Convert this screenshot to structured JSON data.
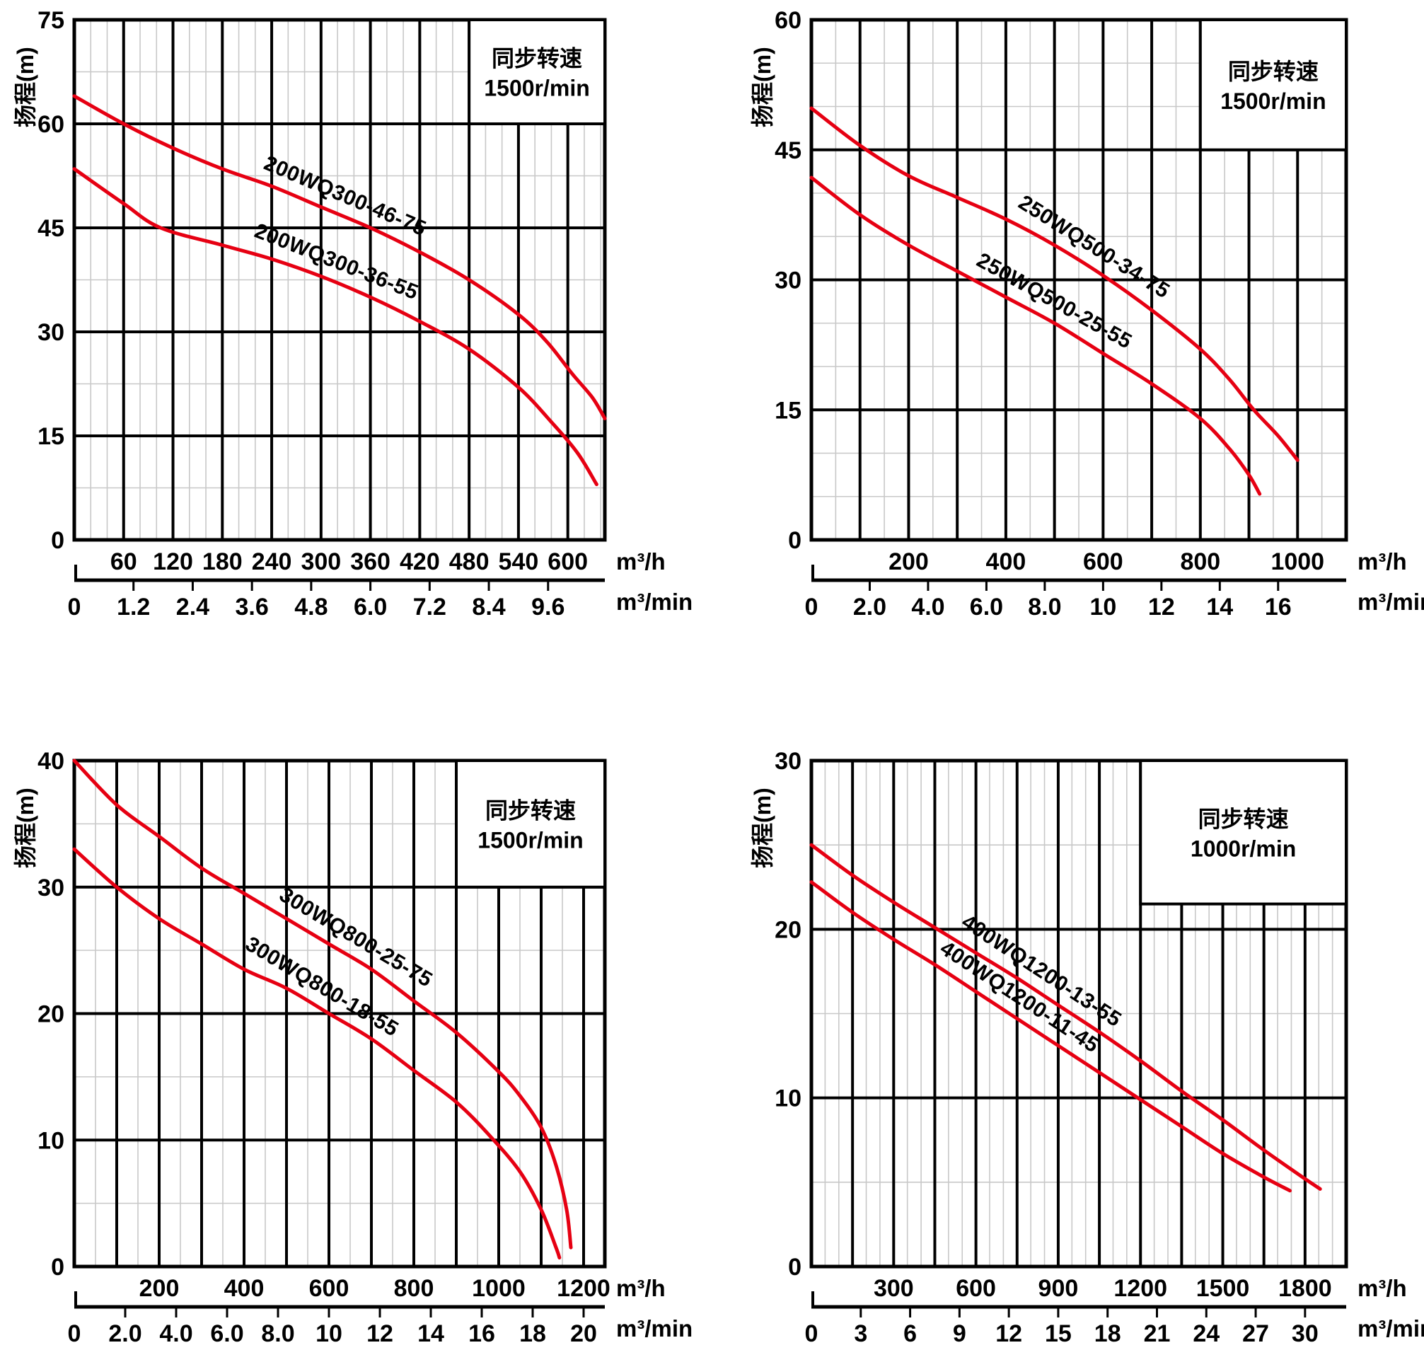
{
  "colors": {
    "curve_red": "#e60012",
    "note_blue": "#1577be",
    "grid_minor": "#c8c8c8",
    "grid_major": "#000000",
    "text": "#000000",
    "background": "#ffffff"
  },
  "chart_data": [
    {
      "type": "line",
      "name": "200WQ300",
      "y_axis_label": "扬程(m)",
      "note": {
        "line1": "同步转速",
        "line2": "1500r/min"
      },
      "units": {
        "primary": "m³/h",
        "secondary": "m³/min"
      },
      "y": {
        "min": 0,
        "max": 75,
        "major": 15,
        "minor": 7.5,
        "tick_labels": [
          "0",
          "15",
          "30",
          "45",
          "60",
          "75"
        ]
      },
      "x": {
        "min": 0,
        "max": 645,
        "major": 60,
        "minor": 20,
        "primary_ticks": {
          "labels": [
            "60",
            "120",
            "180",
            "240",
            "300",
            "360",
            "420",
            "480",
            "540",
            "600"
          ],
          "values": [
            60,
            120,
            180,
            240,
            300,
            360,
            420,
            480,
            540,
            600
          ]
        },
        "secondary_ticks": {
          "labels": [
            "0",
            "1.2",
            "2.4",
            "3.6",
            "4.8",
            "6.0",
            "7.2",
            "8.4",
            "9.6"
          ],
          "values_h": [
            0,
            72,
            144,
            216,
            288,
            360,
            432,
            504,
            576
          ]
        }
      },
      "note_box": {
        "x_from": 480,
        "y_from": 60
      },
      "series": [
        {
          "name": "200WQ300-46-75",
          "points": [
            [
              0,
              64
            ],
            [
              60,
              60
            ],
            [
              120,
              56.5
            ],
            [
              180,
              53.5
            ],
            [
              240,
              51
            ],
            [
              300,
              48
            ],
            [
              360,
              45
            ],
            [
              420,
              41.5
            ],
            [
              480,
              37.5
            ],
            [
              540,
              32.5
            ],
            [
              575,
              28.5
            ],
            [
              605,
              24
            ],
            [
              630,
              20.5
            ],
            [
              645,
              17.5
            ]
          ]
        },
        {
          "name": "200WQ300-36-55",
          "points": [
            [
              0,
              53.5
            ],
            [
              60,
              48.5
            ],
            [
              105,
              45
            ],
            [
              180,
              42.5
            ],
            [
              240,
              40.5
            ],
            [
              300,
              38
            ],
            [
              360,
              35
            ],
            [
              420,
              31.5
            ],
            [
              480,
              27.5
            ],
            [
              540,
              22
            ],
            [
              580,
              17
            ],
            [
              612,
              12.5
            ],
            [
              635,
              8
            ]
          ]
        }
      ]
    },
    {
      "type": "line",
      "name": "250WQ500",
      "y_axis_label": "扬程(m)",
      "note": {
        "line1": "同步转速",
        "line2": "1500r/min"
      },
      "units": {
        "primary": "m³/h",
        "secondary": "m³/min"
      },
      "y": {
        "min": 0,
        "max": 60,
        "major": 15,
        "minor": 5,
        "tick_labels": [
          "0",
          "15",
          "30",
          "45",
          "60"
        ]
      },
      "x": {
        "min": 0,
        "max": 1100,
        "major": 100,
        "minor": 50,
        "primary_ticks": {
          "labels": [
            "200",
            "400",
            "600",
            "800",
            "1000"
          ],
          "values": [
            200,
            400,
            600,
            800,
            1000
          ]
        },
        "secondary_ticks": {
          "labels": [
            "0",
            "2.0",
            "4.0",
            "6.0",
            "8.0",
            "10",
            "12",
            "14",
            "16"
          ],
          "values_h": [
            0,
            120,
            240,
            360,
            480,
            600,
            720,
            840,
            960
          ]
        }
      },
      "note_box": {
        "x_from": 800,
        "y_from": 45
      },
      "series": [
        {
          "name": "250WQ500-34-75",
          "points": [
            [
              0,
              49.8
            ],
            [
              100,
              45.5
            ],
            [
              200,
              42
            ],
            [
              300,
              39.5
            ],
            [
              400,
              37
            ],
            [
              500,
              34
            ],
            [
              600,
              30.5
            ],
            [
              700,
              26.5
            ],
            [
              800,
              22
            ],
            [
              860,
              18.5
            ],
            [
              910,
              15
            ],
            [
              960,
              12
            ],
            [
              1000,
              9.2
            ]
          ]
        },
        {
          "name": "250WQ500-25-55",
          "points": [
            [
              0,
              41.8
            ],
            [
              100,
              37.5
            ],
            [
              200,
              34
            ],
            [
              300,
              31
            ],
            [
              400,
              28
            ],
            [
              500,
              25
            ],
            [
              600,
              21.5
            ],
            [
              700,
              18
            ],
            [
              800,
              14
            ],
            [
              860,
              10.5
            ],
            [
              900,
              7.5
            ],
            [
              922,
              5.3
            ]
          ]
        }
      ]
    },
    {
      "type": "line",
      "name": "300WQ800",
      "y_axis_label": "扬程(m)",
      "note": {
        "line1": "同步转速",
        "line2": "1500r/min"
      },
      "units": {
        "primary": "m³/h",
        "secondary": "m³/min"
      },
      "y": {
        "min": 0,
        "max": 40,
        "major": 10,
        "minor": 5,
        "tick_labels": [
          "0",
          "10",
          "20",
          "30",
          "40"
        ]
      },
      "x": {
        "min": 0,
        "max": 1250,
        "major": 100,
        "minor": 50,
        "primary_ticks": {
          "labels": [
            "200",
            "400",
            "600",
            "800",
            "1000",
            "1200"
          ],
          "values": [
            200,
            400,
            600,
            800,
            1000,
            1200
          ]
        },
        "secondary_ticks": {
          "labels": [
            "0",
            "2.0",
            "4.0",
            "6.0",
            "8.0",
            "10",
            "12",
            "14",
            "16",
            "18",
            "20"
          ],
          "values_h": [
            0,
            120,
            240,
            360,
            480,
            600,
            720,
            840,
            960,
            1080,
            1200
          ]
        }
      },
      "note_box": {
        "x_from": 900,
        "y_from": 30
      },
      "series": [
        {
          "name": "300WQ800-25-75",
          "points": [
            [
              0,
              40
            ],
            [
              100,
              36.5
            ],
            [
              200,
              34
            ],
            [
              300,
              31.5
            ],
            [
              400,
              29.5
            ],
            [
              500,
              27.5
            ],
            [
              600,
              25.5
            ],
            [
              700,
              23.5
            ],
            [
              800,
              21
            ],
            [
              900,
              18.5
            ],
            [
              1000,
              15.4
            ],
            [
              1050,
              13.5
            ],
            [
              1100,
              11
            ],
            [
              1135,
              8
            ],
            [
              1160,
              4.5
            ],
            [
              1170,
              1.5
            ]
          ]
        },
        {
          "name": "300WQ800-18-55",
          "points": [
            [
              0,
              33
            ],
            [
              100,
              30
            ],
            [
              200,
              27.5
            ],
            [
              300,
              25.5
            ],
            [
              400,
              23.5
            ],
            [
              500,
              22
            ],
            [
              600,
              20
            ],
            [
              700,
              18
            ],
            [
              800,
              15.5
            ],
            [
              900,
              13
            ],
            [
              980,
              10.3
            ],
            [
              1050,
              7.5
            ],
            [
              1100,
              4.5
            ],
            [
              1135,
              1.5
            ],
            [
              1143,
              0.7
            ]
          ]
        }
      ]
    },
    {
      "type": "line",
      "name": "400WQ1200",
      "y_axis_label": "扬程(m)",
      "note": {
        "line1": "同步转速",
        "line2": "1000r/min"
      },
      "units": {
        "primary": "m³/h",
        "secondary": "m³/min"
      },
      "y": {
        "min": 0,
        "max": 30,
        "major": 10,
        "minor": 5,
        "tick_labels": [
          "0",
          "10",
          "20",
          "30"
        ]
      },
      "x": {
        "min": 0,
        "max": 1950,
        "major": 150,
        "minor": 50,
        "primary_ticks": {
          "labels": [
            "300",
            "600",
            "900",
            "1200",
            "1500",
            "1800"
          ],
          "values": [
            300,
            600,
            900,
            1200,
            1500,
            1800
          ]
        },
        "secondary_ticks": {
          "labels": [
            "0",
            "3",
            "6",
            "9",
            "12",
            "15",
            "18",
            "21",
            "24",
            "27",
            "30"
          ],
          "values_h": [
            0,
            180,
            360,
            540,
            720,
            900,
            1080,
            1260,
            1440,
            1620,
            1800
          ]
        }
      },
      "note_box": {
        "x_from": 1200,
        "y_from": 21.5
      },
      "series": [
        {
          "name": "400WQ1200-13-55",
          "points": [
            [
              0,
              25
            ],
            [
              150,
              23.2
            ],
            [
              300,
              21.6
            ],
            [
              450,
              20.1
            ],
            [
              600,
              18.6
            ],
            [
              750,
              17.1
            ],
            [
              900,
              15.5
            ],
            [
              1050,
              13.9
            ],
            [
              1200,
              12.2
            ],
            [
              1350,
              10.4
            ],
            [
              1500,
              8.7
            ],
            [
              1650,
              6.9
            ],
            [
              1800,
              5.2
            ],
            [
              1855,
              4.6
            ]
          ]
        },
        {
          "name": "400WQ1200-11-45",
          "points": [
            [
              0,
              22.8
            ],
            [
              150,
              21
            ],
            [
              300,
              19.4
            ],
            [
              450,
              17.9
            ],
            [
              600,
              16.3
            ],
            [
              750,
              14.7
            ],
            [
              900,
              13.1
            ],
            [
              1050,
              11.5
            ],
            [
              1200,
              9.9
            ],
            [
              1350,
              8.3
            ],
            [
              1500,
              6.7
            ],
            [
              1650,
              5.3
            ],
            [
              1745,
              4.5
            ]
          ]
        }
      ]
    }
  ]
}
